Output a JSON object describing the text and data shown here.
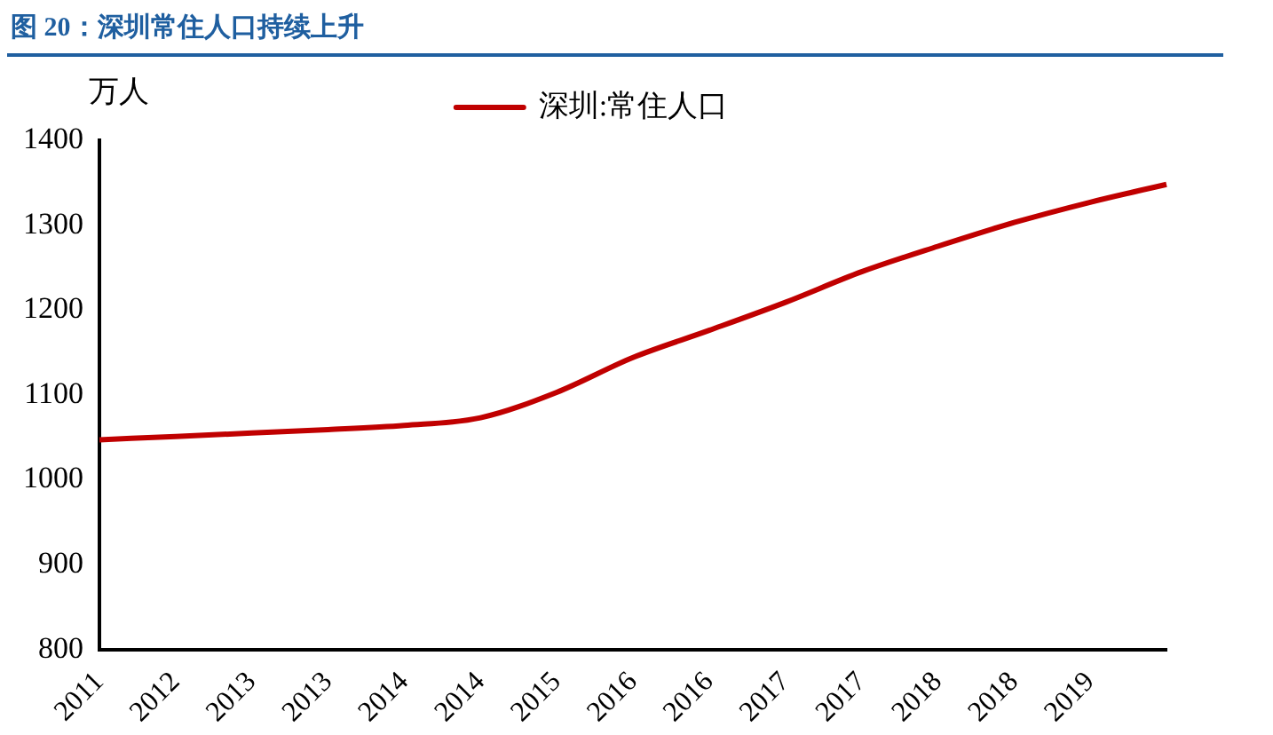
{
  "chart_data": {
    "type": "line",
    "title": "图 20：深圳常住人口持续上升",
    "ylabel": "万人",
    "categories": [
      "2011",
      "2012",
      "2013",
      "2013",
      "2014",
      "2014",
      "2015",
      "2016",
      "2016",
      "2017",
      "2017",
      "2018",
      "2018",
      "2019",
      null
    ],
    "series": [
      {
        "name": "深圳:常住人口",
        "color": "#c00000",
        "values": [
          1047,
          1051,
          1055,
          1059,
          1064,
          1073,
          1103,
          1144,
          1176,
          1209,
          1245,
          1275,
          1303,
          1327,
          1348
        ]
      }
    ],
    "ylim": [
      800,
      1400
    ],
    "yticks": [
      800,
      900,
      1000,
      1100,
      1200,
      1300,
      1400
    ],
    "grid": false,
    "legend": "top",
    "marker": "none",
    "line_style": "solid"
  }
}
